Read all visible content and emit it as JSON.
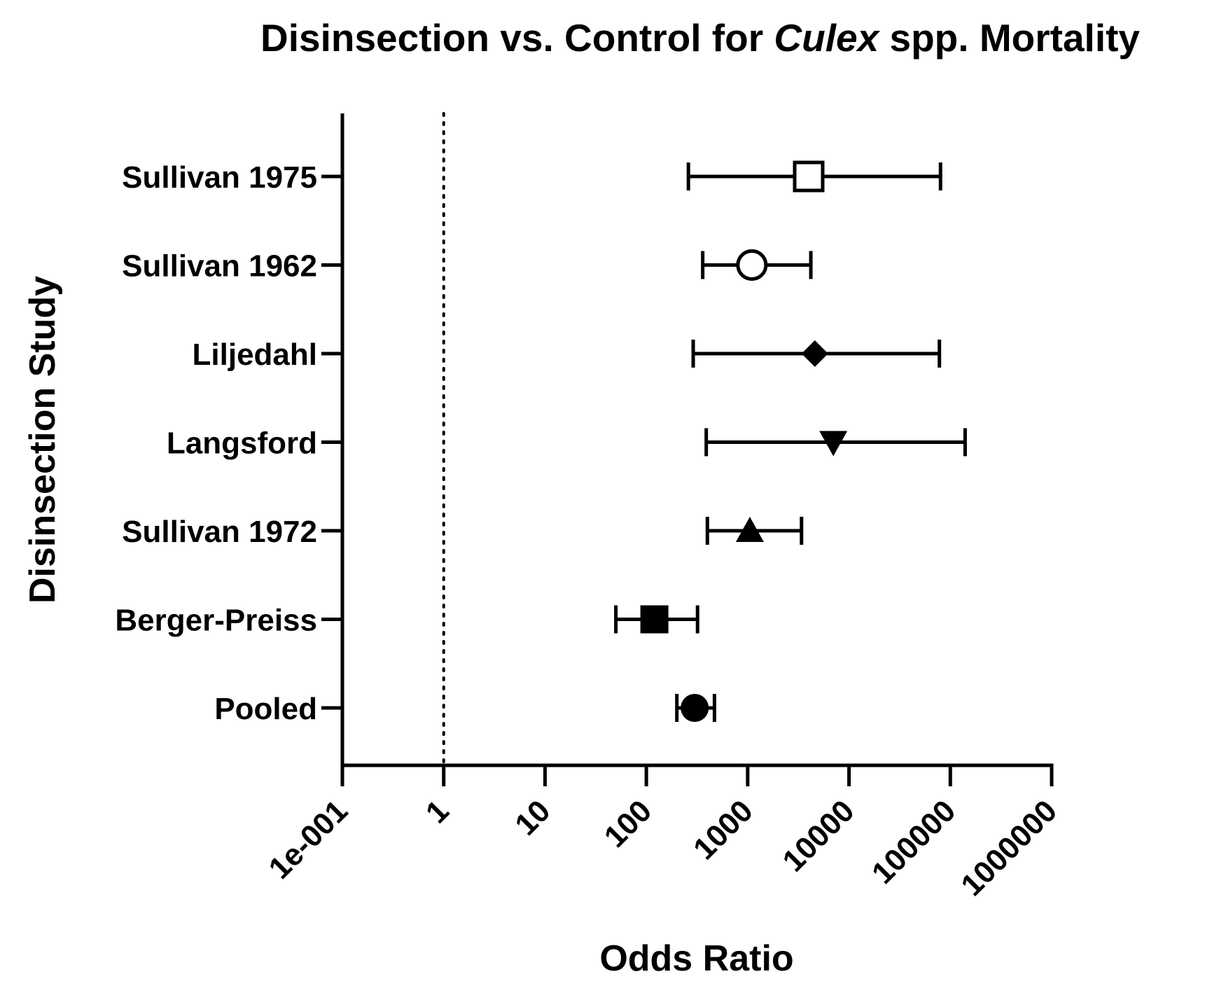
{
  "chart_data": {
    "type": "forest",
    "title_parts": [
      {
        "text": "Disinsection vs. Control for ",
        "italic": false
      },
      {
        "text": "Culex",
        "italic": true
      },
      {
        "text": " spp. Mortality",
        "italic": false
      }
    ],
    "xlabel": "Odds Ratio",
    "ylabel": "Disinsection Study",
    "x_scale": "log10",
    "xlim": [
      0.1,
      1000000
    ],
    "x_ticks": [
      {
        "value": 0.1,
        "label": "1e-001"
      },
      {
        "value": 1,
        "label": "1"
      },
      {
        "value": 10,
        "label": "10"
      },
      {
        "value": 100,
        "label": "100"
      },
      {
        "value": 1000,
        "label": "1000"
      },
      {
        "value": 10000,
        "label": "10000"
      },
      {
        "value": 100000,
        "label": "100000"
      },
      {
        "value": 1000000,
        "label": "1000000"
      }
    ],
    "reference_line": {
      "value": 1,
      "style": "dotted"
    },
    "studies": [
      {
        "label": "Sullivan 1975",
        "or": 4000,
        "lower": 260,
        "upper": 80000,
        "marker": "square-open"
      },
      {
        "label": "Sullivan 1962",
        "or": 1100,
        "lower": 360,
        "upper": 4200,
        "marker": "circle-open"
      },
      {
        "label": "Liljedahl",
        "or": 4600,
        "lower": 290,
        "upper": 78000,
        "marker": "diamond-filled"
      },
      {
        "label": "Langsford",
        "or": 7000,
        "lower": 390,
        "upper": 140000,
        "marker": "triangle-down-filled"
      },
      {
        "label": "Sullivan 1972",
        "or": 1050,
        "lower": 400,
        "upper": 3400,
        "marker": "triangle-up-filled"
      },
      {
        "label": "Berger-Preiss",
        "or": 120,
        "lower": 50,
        "upper": 320,
        "marker": "square-filled"
      },
      {
        "label": "Pooled",
        "or": 300,
        "lower": 200,
        "upper": 470,
        "marker": "circle-filled"
      }
    ]
  }
}
